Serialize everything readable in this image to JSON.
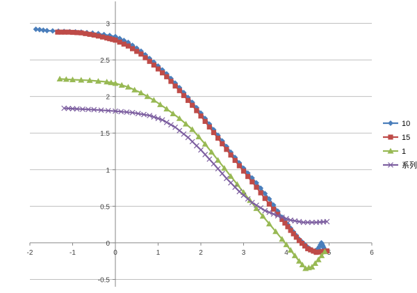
{
  "chart_data": {
    "type": "scatter",
    "xlim": [
      -2,
      6
    ],
    "ylim": [
      -0.6,
      3.3
    ],
    "x_ticks": [
      -2,
      -1,
      0,
      1,
      2,
      3,
      4,
      5,
      6
    ],
    "x_tick_labels": [
      "-2",
      "-1",
      "0",
      "1",
      "2",
      "3",
      "4",
      "5",
      "6"
    ],
    "y_ticks": [
      -0.5,
      0,
      0.5,
      1,
      1.5,
      2,
      2.5,
      3
    ],
    "y_tick_labels": [
      "-0.5",
      "0",
      "0.5",
      "1",
      "1.5",
      "2",
      "2.5",
      "3"
    ],
    "grid": "horizontal",
    "legend_position": "right",
    "series": [
      {
        "name": "10",
        "color": "#4a7ebb",
        "marker": "diamond",
        "points": [
          [
            -1.86,
            2.92
          ],
          [
            -1.6,
            2.9
          ],
          [
            -1.2,
            2.89
          ],
          [
            -0.8,
            2.88
          ],
          [
            -0.4,
            2.86
          ],
          [
            0,
            2.82
          ],
          [
            0.3,
            2.74
          ],
          [
            0.6,
            2.62
          ],
          [
            0.9,
            2.47
          ],
          [
            1.2,
            2.31
          ],
          [
            1.5,
            2.12
          ],
          [
            1.8,
            1.92
          ],
          [
            2.1,
            1.7
          ],
          [
            2.4,
            1.47
          ],
          [
            2.7,
            1.24
          ],
          [
            3,
            1.02
          ],
          [
            3.3,
            0.82
          ],
          [
            3.6,
            0.6
          ],
          [
            3.9,
            0.35
          ],
          [
            4.1,
            0.2
          ],
          [
            4.3,
            0.05
          ],
          [
            4.5,
            -0.06
          ],
          [
            4.65,
            -0.12
          ],
          [
            4.75,
            -0.08
          ],
          [
            4.82,
            0.0
          ],
          [
            4.86,
            -0.05
          ],
          [
            4.9,
            -0.1
          ]
        ]
      },
      {
        "name": "15",
        "color": "#be4b48",
        "marker": "square",
        "points": [
          [
            -1.35,
            2.88
          ],
          [
            -1.1,
            2.88
          ],
          [
            -0.8,
            2.87
          ],
          [
            -0.5,
            2.84
          ],
          [
            -0.2,
            2.8
          ],
          [
            0,
            2.77
          ],
          [
            0.3,
            2.69
          ],
          [
            0.6,
            2.58
          ],
          [
            0.9,
            2.43
          ],
          [
            1.2,
            2.27
          ],
          [
            1.5,
            2.08
          ],
          [
            1.8,
            1.88
          ],
          [
            2.1,
            1.66
          ],
          [
            2.4,
            1.43
          ],
          [
            2.7,
            1.2
          ],
          [
            3,
            0.98
          ],
          [
            3.3,
            0.76
          ],
          [
            3.6,
            0.53
          ],
          [
            3.9,
            0.32
          ],
          [
            4.1,
            0.17
          ],
          [
            4.3,
            0.03
          ],
          [
            4.5,
            -0.08
          ],
          [
            4.7,
            -0.13
          ],
          [
            4.85,
            -0.12
          ],
          [
            4.95,
            -0.11
          ]
        ]
      },
      {
        "name": "1",
        "color": "#98b954",
        "marker": "triangle",
        "points": [
          [
            -1.3,
            2.24
          ],
          [
            -1,
            2.23
          ],
          [
            -0.6,
            2.22
          ],
          [
            -0.2,
            2.2
          ],
          [
            0,
            2.18
          ],
          [
            0.3,
            2.13
          ],
          [
            0.6,
            2.05
          ],
          [
            0.9,
            1.95
          ],
          [
            1.2,
            1.83
          ],
          [
            1.5,
            1.7
          ],
          [
            1.8,
            1.55
          ],
          [
            2.1,
            1.35
          ],
          [
            2.4,
            1.13
          ],
          [
            2.7,
            0.91
          ],
          [
            3,
            0.69
          ],
          [
            3.3,
            0.47
          ],
          [
            3.6,
            0.26
          ],
          [
            3.9,
            0.05
          ],
          [
            4.1,
            -0.1
          ],
          [
            4.3,
            -0.25
          ],
          [
            4.45,
            -0.35
          ],
          [
            4.6,
            -0.33
          ],
          [
            4.75,
            -0.23
          ],
          [
            4.9,
            -0.12
          ]
        ]
      },
      {
        "name": "系列",
        "color": "#7d5fa0",
        "marker": "x",
        "points": [
          [
            -1.2,
            1.84
          ],
          [
            -0.9,
            1.83
          ],
          [
            -0.5,
            1.82
          ],
          [
            0,
            1.8
          ],
          [
            0.4,
            1.78
          ],
          [
            0.8,
            1.74
          ],
          [
            1.1,
            1.68
          ],
          [
            1.4,
            1.58
          ],
          [
            1.7,
            1.44
          ],
          [
            2,
            1.27
          ],
          [
            2.3,
            1.08
          ],
          [
            2.6,
            0.88
          ],
          [
            2.9,
            0.7
          ],
          [
            3.2,
            0.55
          ],
          [
            3.5,
            0.44
          ],
          [
            3.8,
            0.37
          ],
          [
            4.1,
            0.31
          ],
          [
            4.4,
            0.28
          ],
          [
            4.7,
            0.28
          ],
          [
            4.95,
            0.29
          ]
        ]
      }
    ]
  }
}
